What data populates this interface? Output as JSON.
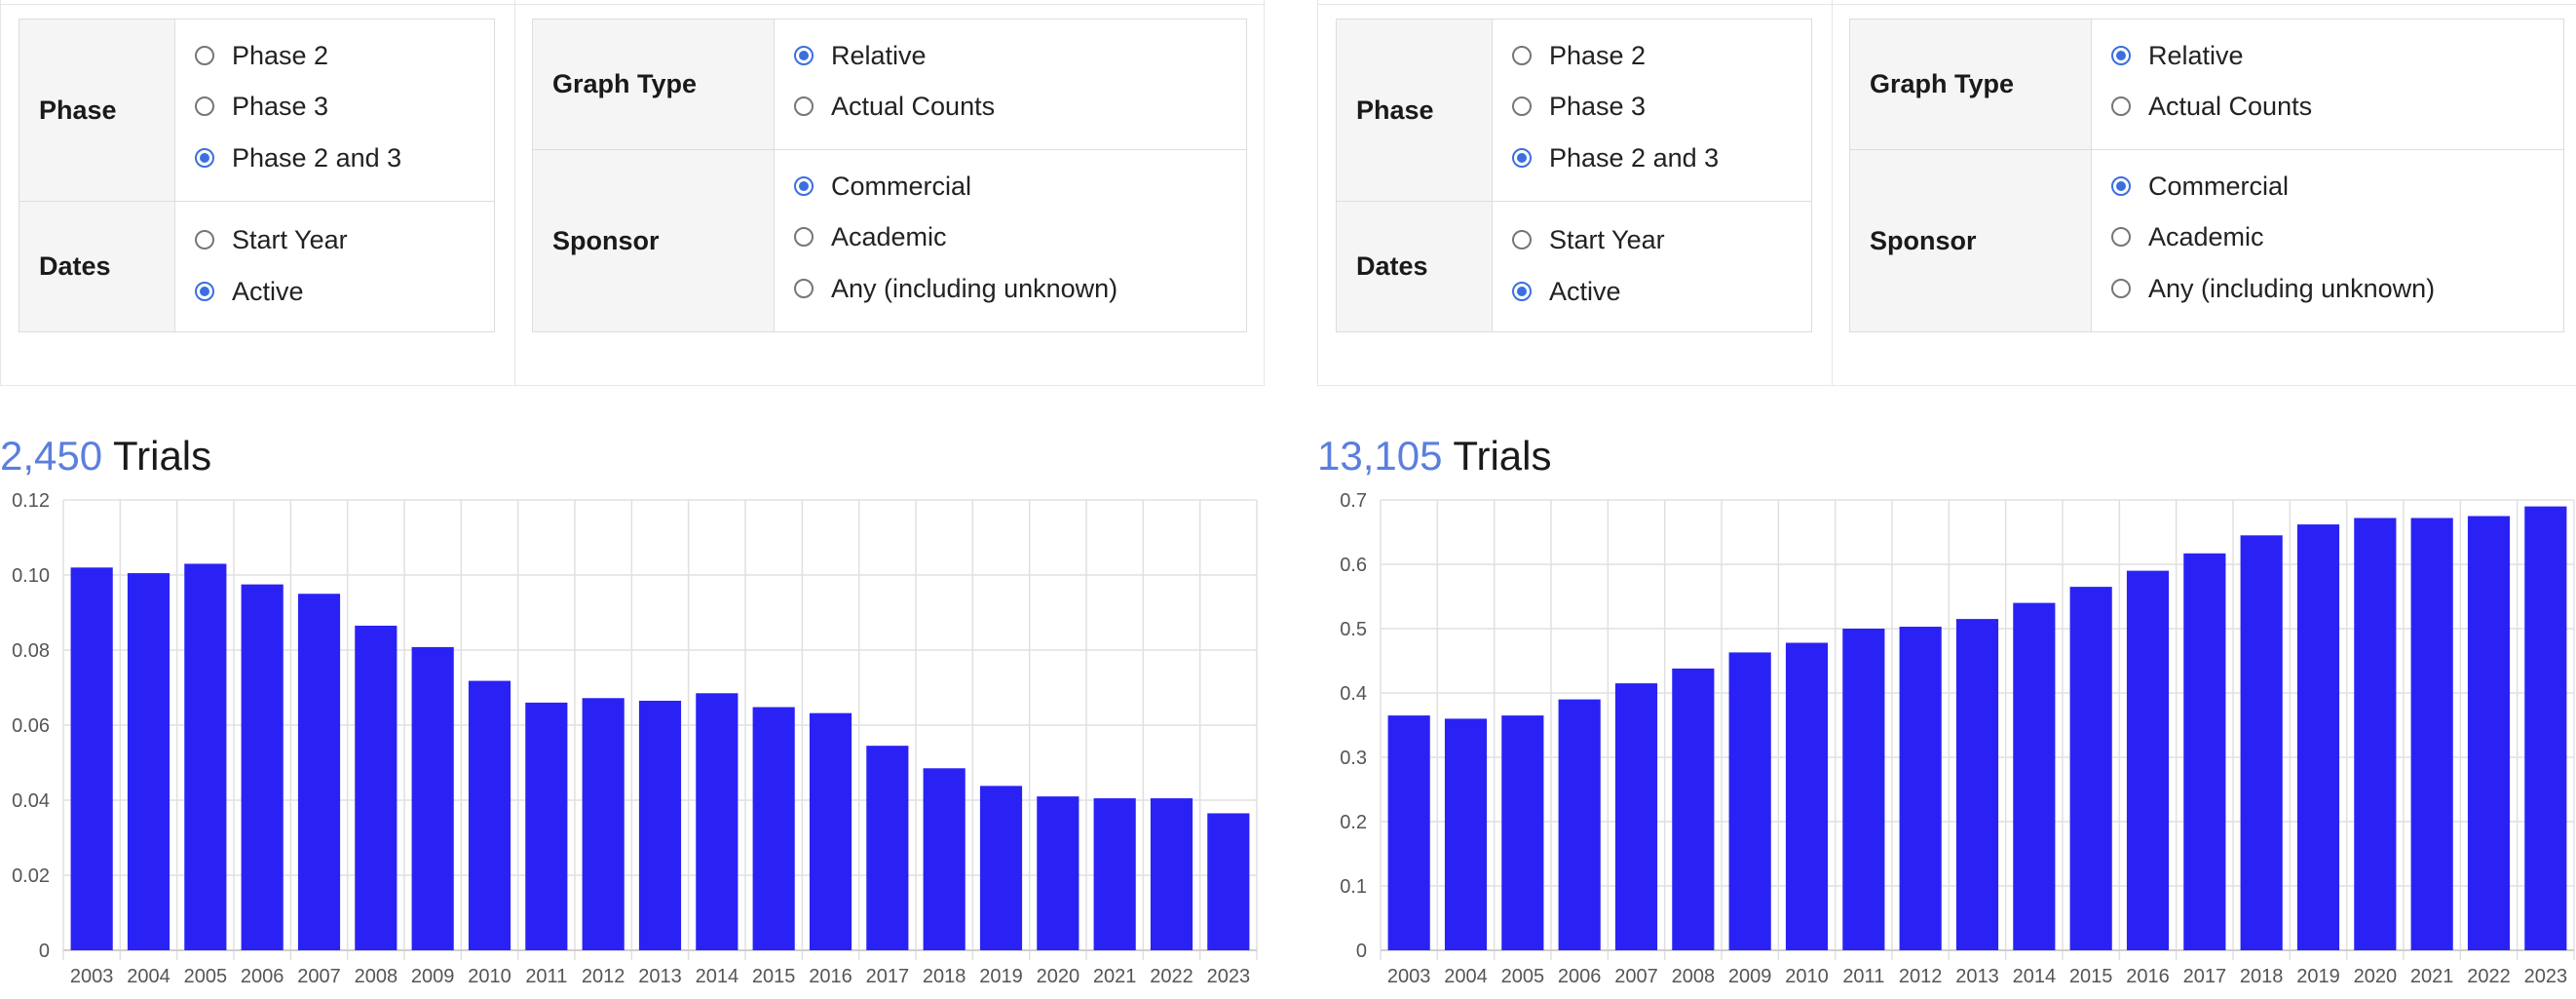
{
  "panels": [
    {
      "phase": {
        "label": "Phase",
        "options": [
          {
            "label": "Phase 2",
            "selected": false
          },
          {
            "label": "Phase 3",
            "selected": false
          },
          {
            "label": "Phase 2 and 3",
            "selected": true
          }
        ]
      },
      "dates": {
        "label": "Dates",
        "options": [
          {
            "label": "Start Year",
            "selected": false
          },
          {
            "label": "Active",
            "selected": true
          }
        ]
      },
      "graph_type": {
        "label": "Graph Type",
        "options": [
          {
            "label": "Relative",
            "selected": true
          },
          {
            "label": "Actual Counts",
            "selected": false
          }
        ]
      },
      "sponsor": {
        "label": "Sponsor",
        "options": [
          {
            "label": "Commercial",
            "selected": true
          },
          {
            "label": "Academic",
            "selected": false
          },
          {
            "label": "Any (including unknown)",
            "selected": false
          }
        ]
      },
      "trials": {
        "count": "2,450",
        "word": "Trials"
      }
    },
    {
      "phase": {
        "label": "Phase",
        "options": [
          {
            "label": "Phase 2",
            "selected": false
          },
          {
            "label": "Phase 3",
            "selected": false
          },
          {
            "label": "Phase 2 and 3",
            "selected": true
          }
        ]
      },
      "dates": {
        "label": "Dates",
        "options": [
          {
            "label": "Start Year",
            "selected": false
          },
          {
            "label": "Active",
            "selected": true
          }
        ]
      },
      "graph_type": {
        "label": "Graph Type",
        "options": [
          {
            "label": "Relative",
            "selected": true
          },
          {
            "label": "Actual Counts",
            "selected": false
          }
        ]
      },
      "sponsor": {
        "label": "Sponsor",
        "options": [
          {
            "label": "Commercial",
            "selected": true
          },
          {
            "label": "Academic",
            "selected": false
          },
          {
            "label": "Any (including unknown)",
            "selected": false
          }
        ]
      },
      "trials": {
        "count": "13,105",
        "word": "Trials"
      }
    }
  ],
  "colors": {
    "bar": "#2a22f5",
    "accent": "#3b6fe0",
    "count": "#5b7fdc"
  },
  "chart_data": [
    {
      "type": "bar",
      "categories": [
        "2003",
        "2004",
        "2005",
        "2006",
        "2007",
        "2008",
        "2009",
        "2010",
        "2011",
        "2012",
        "2013",
        "2014",
        "2015",
        "2016",
        "2017",
        "2018",
        "2019",
        "2020",
        "2021",
        "2022",
        "2023"
      ],
      "values": [
        0.102,
        0.1005,
        0.103,
        0.0975,
        0.095,
        0.0865,
        0.0808,
        0.0718,
        0.066,
        0.0672,
        0.0665,
        0.0685,
        0.0648,
        0.0632,
        0.0545,
        0.0485,
        0.0438,
        0.041,
        0.0405,
        0.0405,
        0.0365
      ],
      "ylim": [
        0,
        0.12
      ],
      "yticks": [
        0,
        0.02,
        0.04,
        0.06,
        0.08,
        0.1,
        0.12
      ],
      "ytick_labels": [
        "0",
        "0.02",
        "0.04",
        "0.06",
        "0.08",
        "0.10",
        "0.12"
      ],
      "grid": true
    },
    {
      "type": "bar",
      "categories": [
        "2003",
        "2004",
        "2005",
        "2006",
        "2007",
        "2008",
        "2009",
        "2010",
        "2011",
        "2012",
        "2013",
        "2014",
        "2015",
        "2016",
        "2017",
        "2018",
        "2019",
        "2020",
        "2021",
        "2022",
        "2023"
      ],
      "values": [
        0.365,
        0.36,
        0.365,
        0.39,
        0.415,
        0.438,
        0.463,
        0.478,
        0.5,
        0.503,
        0.515,
        0.54,
        0.565,
        0.59,
        0.617,
        0.645,
        0.662,
        0.672,
        0.672,
        0.675,
        0.69
      ],
      "ylim": [
        0,
        0.7
      ],
      "yticks": [
        0,
        0.1,
        0.2,
        0.3,
        0.4,
        0.5,
        0.6,
        0.7
      ],
      "ytick_labels": [
        "0",
        "0.1",
        "0.2",
        "0.3",
        "0.4",
        "0.5",
        "0.6",
        "0.7"
      ],
      "grid": true
    }
  ]
}
